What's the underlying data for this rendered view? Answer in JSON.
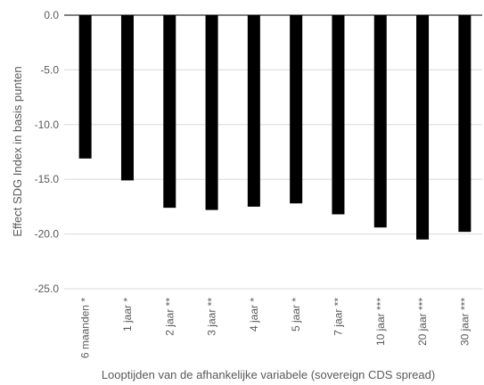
{
  "chart_data": {
    "type": "bar",
    "title": "",
    "xlabel": "Looptijden van de afhankelijke variabele (sovereign CDS spread)",
    "ylabel": "Effect SDG Index in basis punten",
    "ylim": [
      -25,
      0
    ],
    "yticks": [
      0,
      -5,
      -10,
      -15,
      -20,
      -25
    ],
    "ytick_labels": [
      "0.0",
      "-5.0",
      "-10.0",
      "-15.0",
      "-20.0",
      "-25.0"
    ],
    "grid": true,
    "categories": [
      "6 maanden *",
      "1 jaar *",
      "2 jaar **",
      "3 jaar **",
      "4 jaar *",
      "5 jaar *",
      "7 jaar **",
      "10 jaar ***",
      "20 jaar ***",
      "30 jaar ***"
    ],
    "values": [
      -13.1,
      -15.1,
      -17.6,
      -17.8,
      -17.5,
      -17.2,
      -18.2,
      -19.4,
      -20.5,
      -19.8
    ],
    "bar_color": "#000000"
  }
}
